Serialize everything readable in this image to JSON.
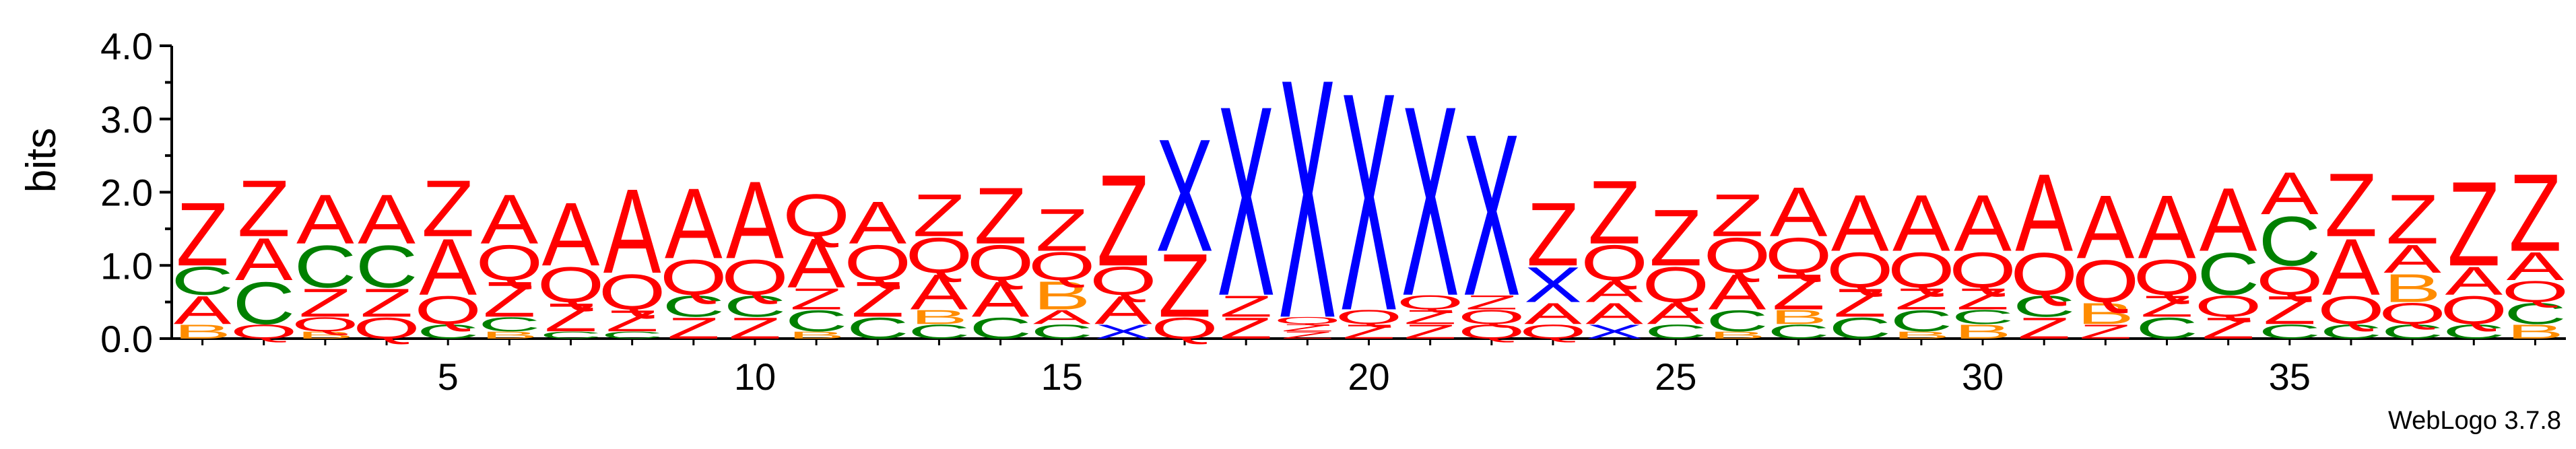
{
  "chart_data": {
    "type": "sequence_logo",
    "ylabel": "bits",
    "xlabel": "",
    "ylim": [
      0,
      4
    ],
    "yticks": [
      "0.0",
      "1.0",
      "2.0",
      "3.0",
      "4.0"
    ],
    "xticks": [
      "5",
      "10",
      "15",
      "20",
      "25",
      "30",
      "35"
    ],
    "positions": [
      1,
      39
    ],
    "credit": "WebLogo 3.7.8",
    "colors": {
      "Z": "#ff0000",
      "A": "#ff0000",
      "Q": "#ff0000",
      "C": "#008000",
      "B": "#ff8c00",
      "X": "#0000ff"
    },
    "columns": [
      {
        "pos": 1,
        "stack": [
          [
            "B",
            0.2
          ],
          [
            "A",
            0.4
          ],
          [
            "C",
            0.4
          ],
          [
            "Z",
            0.9
          ]
        ]
      },
      {
        "pos": 2,
        "stack": [
          [
            "Q",
            0.2
          ],
          [
            "C",
            0.6
          ],
          [
            "A",
            0.6
          ],
          [
            "Z",
            0.8
          ]
        ]
      },
      {
        "pos": 3,
        "stack": [
          [
            "B",
            0.1
          ],
          [
            "Q",
            0.2
          ],
          [
            "Z",
            0.4
          ],
          [
            "C",
            0.6
          ],
          [
            "A",
            0.7
          ]
        ]
      },
      {
        "pos": 4,
        "stack": [
          [
            "Q",
            0.3
          ],
          [
            "Z",
            0.4
          ],
          [
            "C",
            0.6
          ],
          [
            "A",
            0.7
          ]
        ]
      },
      {
        "pos": 5,
        "stack": [
          [
            "C",
            0.2
          ],
          [
            "Q",
            0.4
          ],
          [
            "A",
            0.8
          ],
          [
            "Z",
            0.8
          ]
        ]
      },
      {
        "pos": 6,
        "stack": [
          [
            "B",
            0.1
          ],
          [
            "C",
            0.2
          ],
          [
            "Z",
            0.5
          ],
          [
            "Q",
            0.5
          ],
          [
            "A",
            0.7
          ]
        ]
      },
      {
        "pos": 7,
        "stack": [
          [
            "C",
            0.1
          ],
          [
            "Z",
            0.4
          ],
          [
            "Q",
            0.5
          ],
          [
            "A",
            0.9
          ]
        ]
      },
      {
        "pos": 8,
        "stack": [
          [
            "C",
            0.1
          ],
          [
            "Z",
            0.3
          ],
          [
            "Q",
            0.5
          ],
          [
            "A",
            1.2
          ]
        ]
      },
      {
        "pos": 9,
        "stack": [
          [
            "Z",
            0.3
          ],
          [
            "C",
            0.3
          ],
          [
            "Q",
            0.5
          ],
          [
            "A",
            1.0
          ]
        ]
      },
      {
        "pos": 10,
        "stack": [
          [
            "Z",
            0.3
          ],
          [
            "C",
            0.3
          ],
          [
            "Q",
            0.5
          ],
          [
            "A",
            1.1
          ]
        ]
      },
      {
        "pos": 11,
        "stack": [
          [
            "B",
            0.1
          ],
          [
            "C",
            0.3
          ],
          [
            "Z",
            0.3
          ],
          [
            "A",
            0.7
          ],
          [
            "Q",
            0.6
          ]
        ]
      },
      {
        "pos": 12,
        "stack": [
          [
            "C",
            0.3
          ],
          [
            "Z",
            0.5
          ],
          [
            "Q",
            0.5
          ],
          [
            "A",
            0.6
          ]
        ]
      },
      {
        "pos": 13,
        "stack": [
          [
            "C",
            0.2
          ],
          [
            "B",
            0.2
          ],
          [
            "A",
            0.5
          ],
          [
            "Q",
            0.5
          ],
          [
            "Z",
            0.6
          ]
        ]
      },
      {
        "pos": 14,
        "stack": [
          [
            "C",
            0.3
          ],
          [
            "A",
            0.5
          ],
          [
            "Q",
            0.5
          ],
          [
            "Z",
            0.8
          ]
        ]
      },
      {
        "pos": 15,
        "stack": [
          [
            "C",
            0.2
          ],
          [
            "A",
            0.2
          ],
          [
            "B",
            0.4
          ],
          [
            "Q",
            0.4
          ],
          [
            "Z",
            0.6
          ]
        ]
      },
      {
        "pos": 16,
        "stack": [
          [
            "X",
            0.2
          ],
          [
            "A",
            0.4
          ],
          [
            "Q",
            0.4
          ],
          [
            "Z",
            1.3
          ]
        ]
      },
      {
        "pos": 17,
        "stack": [
          [
            "Q",
            0.3
          ],
          [
            "Z",
            0.9
          ],
          [
            "X",
            1.6
          ]
        ]
      },
      {
        "pos": 18,
        "stack": [
          [
            "Z",
            0.3
          ],
          [
            "Z",
            0.3
          ],
          [
            "X",
            2.7
          ]
        ]
      },
      {
        "pos": 19,
        "stack": [
          [
            "Z",
            0.1
          ],
          [
            "Z",
            0.1
          ],
          [
            "Q",
            0.1
          ],
          [
            "X",
            3.4
          ]
        ]
      },
      {
        "pos": 20,
        "stack": [
          [
            "Z",
            0.2
          ],
          [
            "Q",
            0.2
          ],
          [
            "X",
            3.1
          ]
        ]
      },
      {
        "pos": 21,
        "stack": [
          [
            "Z",
            0.2
          ],
          [
            "Z",
            0.2
          ],
          [
            "Q",
            0.2
          ],
          [
            "X",
            2.7
          ]
        ]
      },
      {
        "pos": 22,
        "stack": [
          [
            "Q",
            0.2
          ],
          [
            "Q",
            0.2
          ],
          [
            "Z",
            0.2
          ],
          [
            "X",
            2.3
          ]
        ]
      },
      {
        "pos": 23,
        "stack": [
          [
            "Q",
            0.2
          ],
          [
            "A",
            0.3
          ],
          [
            "X",
            0.5
          ],
          [
            "Z",
            0.9
          ]
        ]
      },
      {
        "pos": 24,
        "stack": [
          [
            "X",
            0.2
          ],
          [
            "A",
            0.3
          ],
          [
            "A",
            0.3
          ],
          [
            "Q",
            0.5
          ],
          [
            "Z",
            0.9
          ]
        ]
      },
      {
        "pos": 25,
        "stack": [
          [
            "C",
            0.2
          ],
          [
            "A",
            0.3
          ],
          [
            "Q",
            0.5
          ],
          [
            "Z",
            0.8
          ]
        ]
      },
      {
        "pos": 26,
        "stack": [
          [
            "B",
            0.1
          ],
          [
            "C",
            0.3
          ],
          [
            "A",
            0.5
          ],
          [
            "Q",
            0.5
          ],
          [
            "Z",
            0.6
          ]
        ]
      },
      {
        "pos": 27,
        "stack": [
          [
            "C",
            0.2
          ],
          [
            "B",
            0.2
          ],
          [
            "Z",
            0.5
          ],
          [
            "Q",
            0.5
          ],
          [
            "A",
            0.7
          ]
        ]
      },
      {
        "pos": 28,
        "stack": [
          [
            "C",
            0.3
          ],
          [
            "Z",
            0.4
          ],
          [
            "Q",
            0.5
          ],
          [
            "A",
            0.8
          ]
        ]
      },
      {
        "pos": 29,
        "stack": [
          [
            "B",
            0.1
          ],
          [
            "C",
            0.3
          ],
          [
            "Z",
            0.3
          ],
          [
            "Q",
            0.5
          ],
          [
            "A",
            0.8
          ]
        ]
      },
      {
        "pos": 30,
        "stack": [
          [
            "B",
            0.2
          ],
          [
            "C",
            0.2
          ],
          [
            "Z",
            0.3
          ],
          [
            "Q",
            0.5
          ],
          [
            "A",
            0.8
          ]
        ]
      },
      {
        "pos": 31,
        "stack": [
          [
            "Z",
            0.3
          ],
          [
            "C",
            0.3
          ],
          [
            "Q",
            0.6
          ],
          [
            "A",
            1.1
          ]
        ]
      },
      {
        "pos": 32,
        "stack": [
          [
            "Z",
            0.2
          ],
          [
            "B",
            0.3
          ],
          [
            "Q",
            0.6
          ],
          [
            "A",
            0.9
          ]
        ]
      },
      {
        "pos": 33,
        "stack": [
          [
            "C",
            0.3
          ],
          [
            "Z",
            0.3
          ],
          [
            "Q",
            0.5
          ],
          [
            "A",
            0.9
          ]
        ]
      },
      {
        "pos": 34,
        "stack": [
          [
            "Z",
            0.3
          ],
          [
            "Q",
            0.3
          ],
          [
            "C",
            0.6
          ],
          [
            "A",
            0.9
          ]
        ]
      },
      {
        "pos": 35,
        "stack": [
          [
            "C",
            0.2
          ],
          [
            "Z",
            0.4
          ],
          [
            "Q",
            0.4
          ],
          [
            "C",
            0.7
          ],
          [
            "A",
            0.6
          ]
        ]
      },
      {
        "pos": 36,
        "stack": [
          [
            "C",
            0.2
          ],
          [
            "Q",
            0.4
          ],
          [
            "A",
            0.8
          ],
          [
            "Z",
            0.9
          ]
        ]
      },
      {
        "pos": 37,
        "stack": [
          [
            "C",
            0.2
          ],
          [
            "Q",
            0.3
          ],
          [
            "B",
            0.4
          ],
          [
            "A",
            0.4
          ],
          [
            "Z",
            0.7
          ]
        ]
      },
      {
        "pos": 38,
        "stack": [
          [
            "C",
            0.2
          ],
          [
            "Q",
            0.4
          ],
          [
            "A",
            0.4
          ],
          [
            "Z",
            1.2
          ]
        ]
      },
      {
        "pos": 39,
        "stack": [
          [
            "B",
            0.2
          ],
          [
            "C",
            0.3
          ],
          [
            "Q",
            0.3
          ],
          [
            "A",
            0.4
          ],
          [
            "Z",
            1.1
          ]
        ]
      }
    ]
  }
}
